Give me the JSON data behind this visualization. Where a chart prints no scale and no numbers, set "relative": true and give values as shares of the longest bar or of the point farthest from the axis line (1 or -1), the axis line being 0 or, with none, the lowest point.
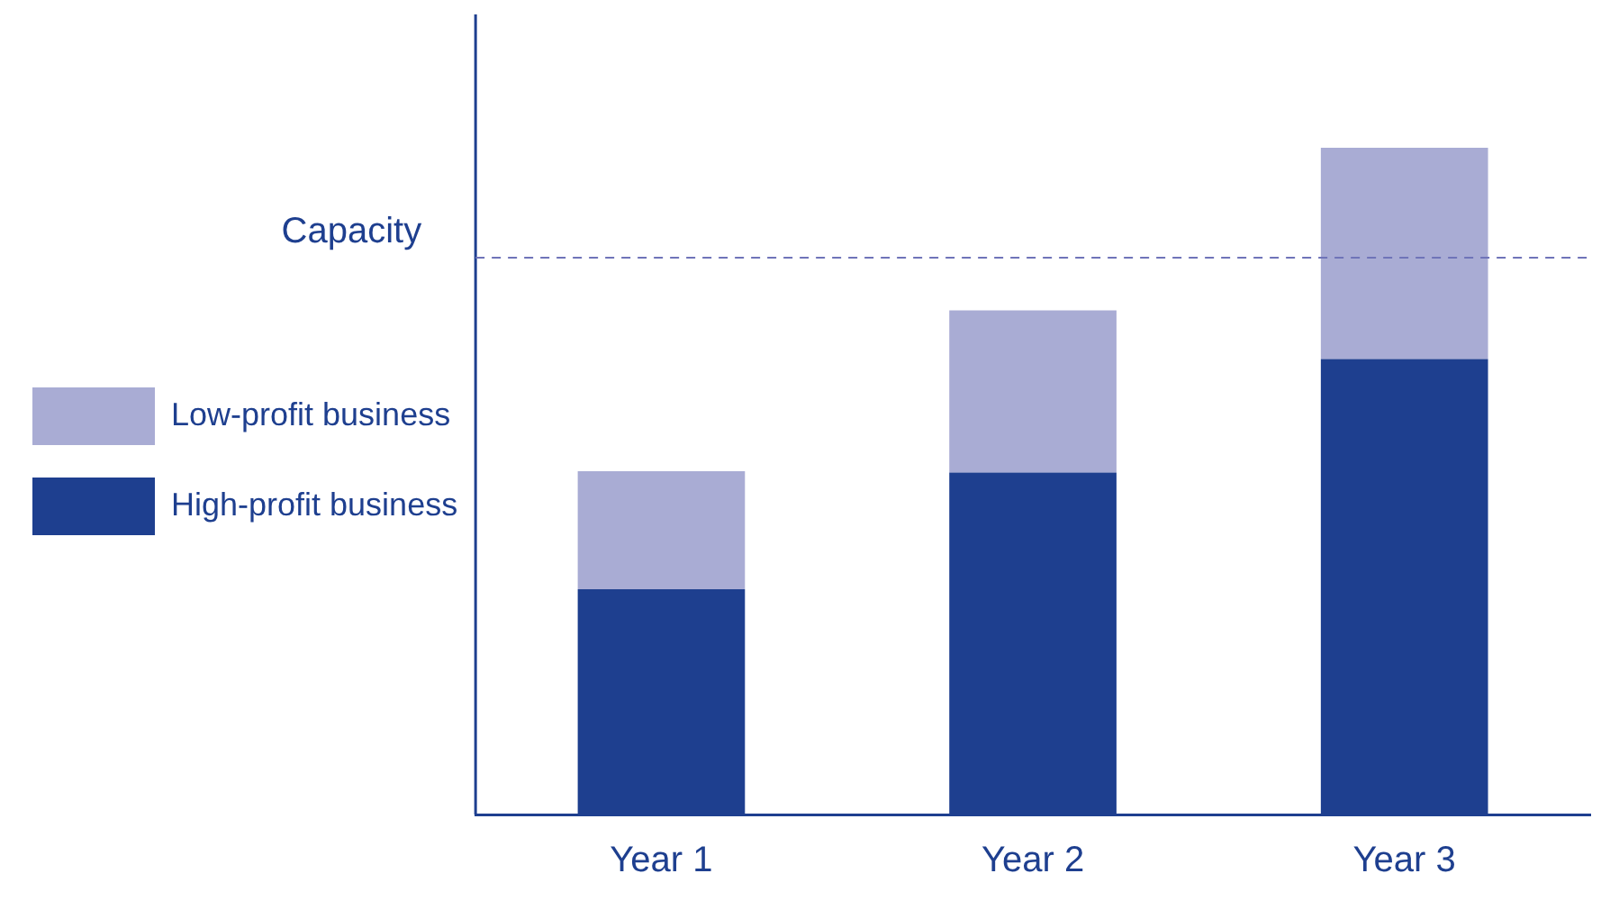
{
  "chart_data": {
    "type": "bar",
    "stacked": true,
    "relative": true,
    "categories": [
      "Year 1",
      "Year 2",
      "Year 3"
    ],
    "series": [
      {
        "name": "High-profit business",
        "color": "#1e3f8f",
        "values": [
          0.338,
          0.513,
          0.683
        ]
      },
      {
        "name": "Low-profit business",
        "color": "#a9acd4",
        "values": [
          0.177,
          0.243,
          0.317
        ]
      }
    ],
    "ref_lines": [
      {
        "axis": "y",
        "value": 0.835,
        "label": "Capacity",
        "color": "#6f74b8",
        "line_style": "dashed"
      }
    ],
    "legend": "left",
    "grid": false
  }
}
